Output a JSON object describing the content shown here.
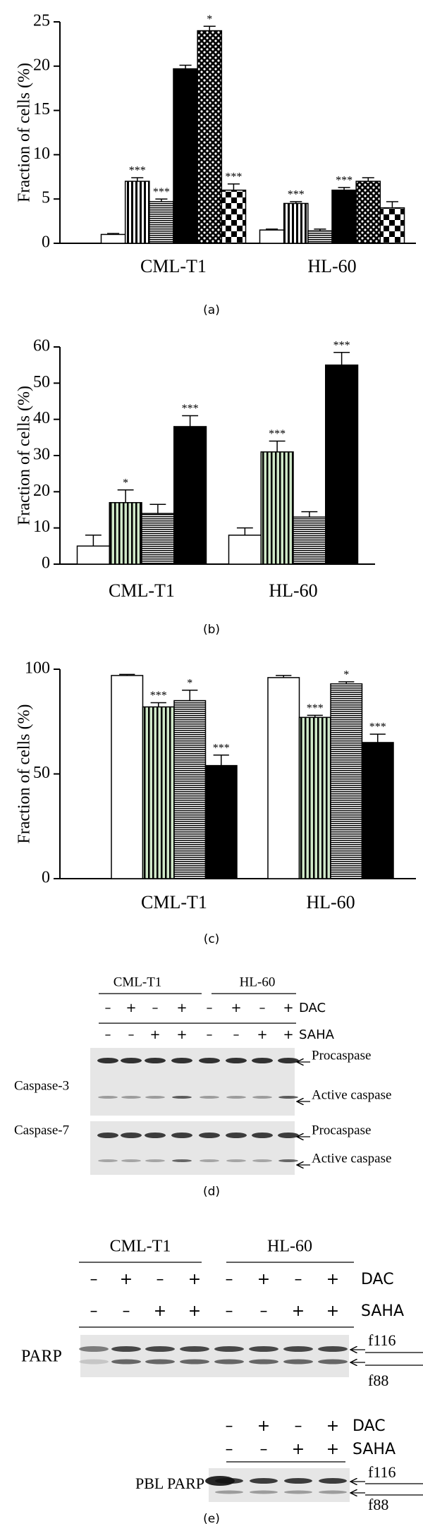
{
  "chart_data": [
    {
      "type": "bar",
      "caption": "(a)",
      "y_label": "Fraction of cells (%)",
      "categories": [
        "CML-T1",
        "HL-60"
      ],
      "ylim": [
        0,
        25
      ],
      "yticks": [
        0,
        5,
        10,
        15,
        20,
        25
      ],
      "series": [
        {
          "color": "#000000",
          "pattern": "none",
          "values": [
            1,
            1.5
          ],
          "errors": [
            0.1,
            0.1
          ],
          "stars": [
            null,
            null
          ]
        },
        {
          "color": "#000000",
          "pattern": "vstripes",
          "values": [
            7,
            4.5
          ],
          "errors": [
            0.4,
            0.2
          ],
          "stars": [
            "***",
            "***"
          ]
        },
        {
          "color": "#000000",
          "pattern": "hlines",
          "values": [
            4.7,
            1.4
          ],
          "errors": [
            0.3,
            0.2
          ],
          "stars": [
            "***",
            null
          ]
        },
        {
          "color": "#000000",
          "pattern": "solid",
          "values": [
            19.7,
            6
          ],
          "errors": [
            0.4,
            0.3
          ],
          "stars": [
            null,
            "***"
          ]
        },
        {
          "color": "#000000",
          "pattern": "dots",
          "values": [
            24,
            7
          ],
          "errors": [
            0.5,
            0.4
          ],
          "stars": [
            "*",
            null
          ]
        },
        {
          "color": "#000000",
          "pattern": "checker",
          "values": [
            6,
            4
          ],
          "errors": [
            0.7,
            0.7
          ],
          "stars": [
            "***",
            null
          ]
        }
      ]
    },
    {
      "type": "bar",
      "caption": "(b)",
      "y_label": "Fraction of cells (%)",
      "categories": [
        "CML-T1",
        "HL-60"
      ],
      "ylim": [
        0,
        60
      ],
      "yticks": [
        0,
        10,
        20,
        30,
        40,
        50,
        60
      ],
      "series": [
        {
          "color": "#000000",
          "pattern": "none",
          "values": [
            5,
            8
          ],
          "errors": [
            3,
            2
          ],
          "stars": [
            null,
            null
          ]
        },
        {
          "color": "#000000",
          "pattern": "vgreen",
          "values": [
            17,
            31
          ],
          "errors": [
            3.5,
            3
          ],
          "stars": [
            "*",
            "***"
          ]
        },
        {
          "color": "#000000",
          "pattern": "hlines",
          "values": [
            14,
            13
          ],
          "errors": [
            2.5,
            1.5
          ],
          "stars": [
            null,
            null
          ]
        },
        {
          "color": "#000000",
          "pattern": "solid",
          "values": [
            38,
            55
          ],
          "errors": [
            3,
            3.5
          ],
          "stars": [
            "***",
            "***"
          ]
        }
      ]
    },
    {
      "type": "bar",
      "caption": "(c)",
      "y_label": "Fraction of cells (%)",
      "categories": [
        "CML-T1",
        "HL-60"
      ],
      "ylim": [
        0,
        100
      ],
      "yticks": [
        0,
        50,
        100
      ],
      "series": [
        {
          "color": "#000000",
          "pattern": "none",
          "values": [
            97,
            96
          ],
          "errors": [
            0.5,
            1
          ],
          "stars": [
            null,
            null
          ]
        },
        {
          "color": "#000000",
          "pattern": "vgreen",
          "values": [
            82,
            77
          ],
          "errors": [
            2,
            1
          ],
          "stars": [
            "***",
            "***"
          ]
        },
        {
          "color": "#000000",
          "pattern": "hlines",
          "values": [
            85,
            93
          ],
          "errors": [
            5,
            1
          ],
          "stars": [
            "*",
            "*"
          ]
        },
        {
          "color": "#000000",
          "pattern": "solid",
          "values": [
            54,
            65
          ],
          "errors": [
            5,
            4
          ],
          "stars": [
            "***",
            "***"
          ]
        }
      ]
    }
  ],
  "blot_d": {
    "caption": "(d)",
    "groups": [
      "CML-T1",
      "HL-60"
    ],
    "rows": [
      {
        "label": "DAC",
        "signs": [
          "–",
          "+",
          "–",
          "+",
          "–",
          "+",
          "–",
          "+"
        ]
      },
      {
        "label": "SAHA",
        "signs": [
          "–",
          "–",
          "+",
          "+",
          "–",
          "–",
          "+",
          "+"
        ]
      }
    ],
    "proteins": [
      "Caspase-3",
      "Caspase-7"
    ],
    "band_labels": [
      "Procaspase",
      "Active caspase",
      "Procaspase",
      "Active caspase"
    ]
  },
  "blot_e": {
    "caption": "(e)",
    "groups": [
      "CML-T1",
      "HL-60"
    ],
    "rows": [
      {
        "label": "DAC",
        "signs": [
          "–",
          "+",
          "–",
          "+",
          "–",
          "+",
          "–",
          "+"
        ]
      },
      {
        "label": "SAHA",
        "signs": [
          "–",
          "–",
          "+",
          "+",
          "–",
          "–",
          "+",
          "+"
        ]
      }
    ],
    "protein": "PARP",
    "fragments": [
      "f116",
      "f88"
    ],
    "pbl": {
      "rows": [
        {
          "label": "DAC",
          "signs": [
            "–",
            "+",
            "–",
            "+"
          ]
        },
        {
          "label": "SAHA",
          "signs": [
            "–",
            "–",
            "+",
            "+"
          ]
        }
      ],
      "protein": "PBL PARP",
      "fragments": [
        "f116",
        "f88"
      ]
    }
  }
}
